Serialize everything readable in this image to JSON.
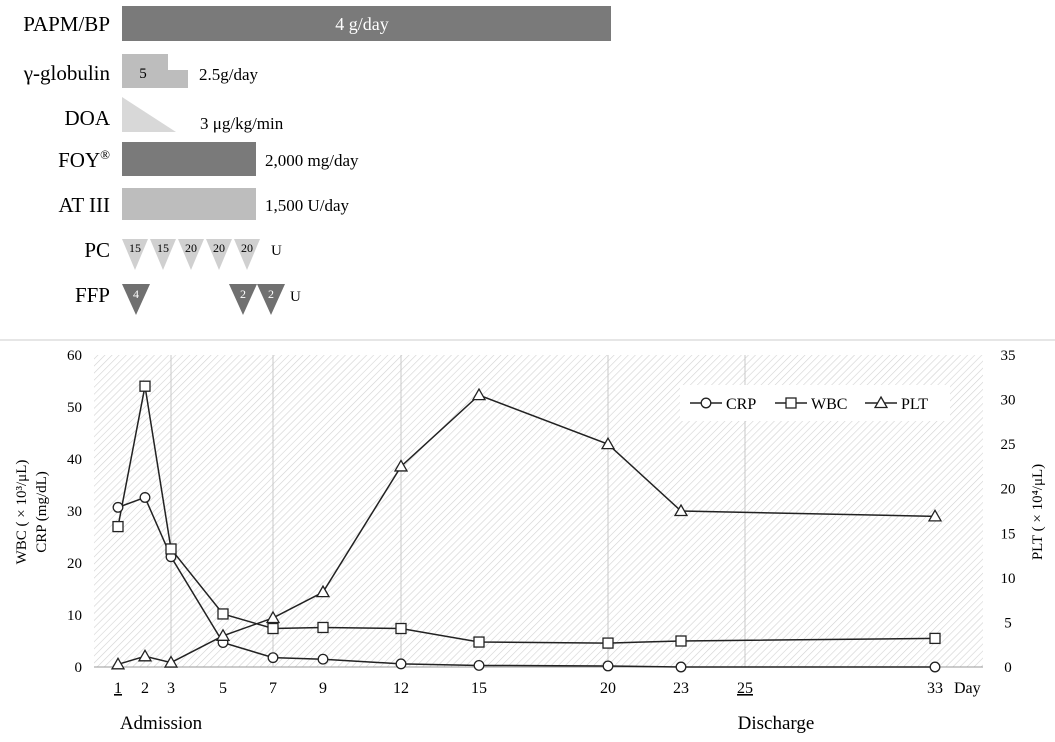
{
  "colors": {
    "dark": "#7a7a7a",
    "medium": "#bdbdbd",
    "light": "#d8d8d8",
    "pc_triangle": "#d0d0d0",
    "ffp_triangle": "#707070",
    "plot_hatch": "#cfcfcf",
    "line": "#222222"
  },
  "treatments": {
    "papm_bp": {
      "label": "PAPM/BP",
      "dose": "4 g/day"
    },
    "globulin": {
      "label": "γ-globulin",
      "step_label": "5",
      "dose": "2.5g/day"
    },
    "doa": {
      "label": "DOA",
      "dose": "3 μg/kg/min"
    },
    "foy": {
      "label": "FOY",
      "mark": "®",
      "dose": "2,000 mg/day"
    },
    "at3": {
      "label": "AT III",
      "dose": "1,500 U/day"
    },
    "pc": {
      "label": "PC",
      "units": [
        "15",
        "15",
        "20",
        "20",
        "20"
      ],
      "unit_label": "U"
    },
    "ffp": {
      "label": "FFP",
      "units": [
        "4",
        "2",
        "2"
      ],
      "unit_label": "U"
    }
  },
  "annotations": {
    "admission": "Admission",
    "discharge": "Discharge",
    "day_label": "Day"
  },
  "chart_data": {
    "type": "line",
    "x": [
      1,
      2,
      3,
      5,
      7,
      9,
      12,
      15,
      20,
      23,
      33
    ],
    "x_ticks": [
      "1",
      "2",
      "3",
      "5",
      "7",
      "9",
      "12",
      "15",
      "20",
      "23",
      "25",
      "33"
    ],
    "x_tick_values": [
      1,
      2,
      3,
      5,
      7,
      9,
      12,
      15,
      20,
      23,
      25,
      33
    ],
    "underlined_ticks": [
      "1",
      "25"
    ],
    "xlabel": "Day",
    "ylabel_left_top": "WBC ( × 10³/μL)",
    "ylabel_left_bottom": "CRP (mg/dL)",
    "ylabel_right": "PLT ( × 10⁴/μL)",
    "ylim_left": [
      0,
      60
    ],
    "yticks_left": [
      "0",
      "10",
      "20",
      "30",
      "40",
      "50",
      "60"
    ],
    "ylim_right": [
      0,
      35
    ],
    "yticks_right": [
      "0",
      "5",
      "10",
      "15",
      "20",
      "25",
      "30",
      "35"
    ],
    "legend_position": "top-right",
    "series": [
      {
        "name": "CRP",
        "axis": "left",
        "marker": "circle",
        "values": [
          30.7,
          32.6,
          21.2,
          4.7,
          1.8,
          1.5,
          0.6,
          0.3,
          0.2,
          0.0,
          0.0
        ]
      },
      {
        "name": "WBC",
        "axis": "left",
        "marker": "square",
        "values": [
          27.0,
          54.0,
          22.7,
          10.2,
          7.4,
          7.6,
          7.4,
          4.8,
          4.6,
          5.0,
          5.5
        ]
      },
      {
        "name": "PLT",
        "axis": "right",
        "marker": "triangle",
        "values": [
          0.3,
          1.2,
          0.5,
          3.5,
          5.5,
          8.4,
          22.5,
          30.5,
          25.0,
          17.5,
          16.9
        ]
      }
    ]
  }
}
